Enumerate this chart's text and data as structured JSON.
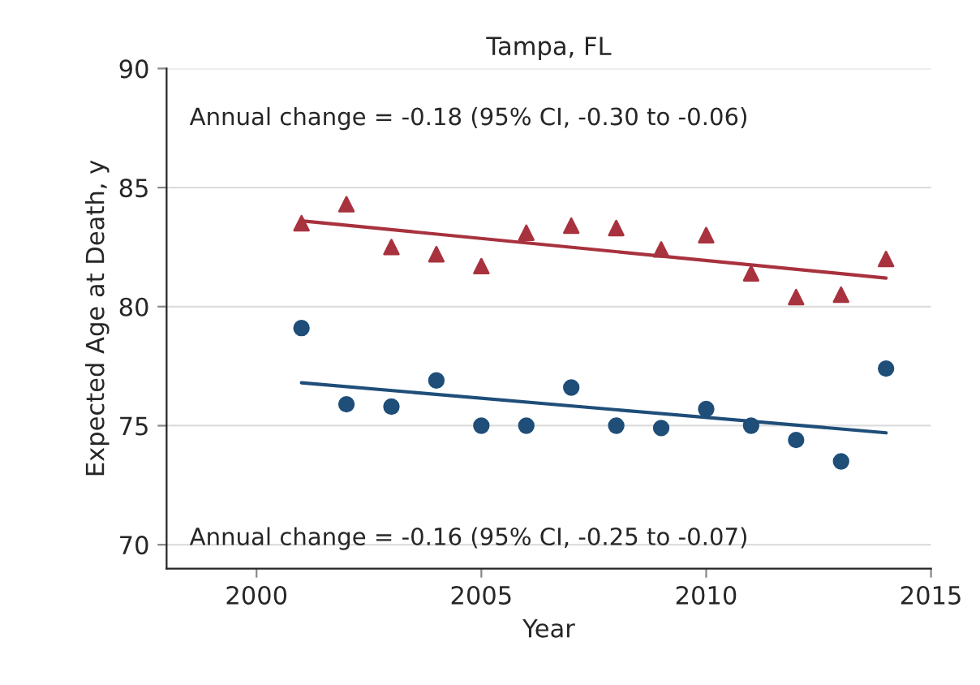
{
  "chart_data": {
    "type": "scatter",
    "title": "Tampa, FL",
    "xlabel": "Year",
    "ylabel": "Expected Age at Death, y",
    "xlim": [
      1998,
      2015
    ],
    "xticks": [
      2000,
      2005,
      2010,
      2015
    ],
    "ylim": [
      69,
      90
    ],
    "yticks": [
      70,
      75,
      80,
      85,
      90
    ],
    "grid": "y",
    "series": [
      {
        "marker": "triangle",
        "color": "#a8323e",
        "x": [
          2001,
          2002,
          2003,
          2004,
          2005,
          2006,
          2007,
          2008,
          2009,
          2010,
          2011,
          2012,
          2013,
          2014
        ],
        "values": [
          83.5,
          84.3,
          82.5,
          82.2,
          81.7,
          83.1,
          83.4,
          83.3,
          82.4,
          83.0,
          81.4,
          80.4,
          80.5,
          82.0
        ]
      },
      {
        "type": "line",
        "marker": "none",
        "color": "#a8323e",
        "x": [
          2001,
          2014
        ],
        "values": [
          83.6,
          81.2
        ]
      },
      {
        "marker": "circle",
        "color": "#1f4e79",
        "x": [
          2001,
          2002,
          2003,
          2004,
          2005,
          2006,
          2007,
          2008,
          2009,
          2010,
          2011,
          2012,
          2013,
          2014
        ],
        "values": [
          79.1,
          75.9,
          75.8,
          76.9,
          75.0,
          75.0,
          76.6,
          75.0,
          74.9,
          75.7,
          75.0,
          74.4,
          73.5,
          77.4
        ]
      },
      {
        "type": "line",
        "marker": "none",
        "color": "#1f4e79",
        "x": [
          2001,
          2014
        ],
        "values": [
          76.8,
          74.7
        ]
      }
    ],
    "annotations": [
      "Annual change = -0.18 (95% CI, -0.30 to -0.06)",
      "Annual change = -0.16 (95% CI, -0.25 to -0.07)"
    ]
  }
}
